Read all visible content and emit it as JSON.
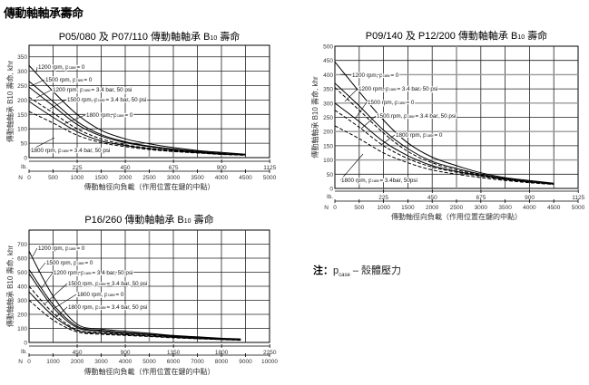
{
  "page_title": "傳動軸軸承壽命",
  "note": {
    "prefix": "注：",
    "p": "p",
    "sub": "case",
    "suffix": " – 殼體壓力"
  },
  "chart_data": [
    {
      "type": "line",
      "title": "P05/080 及 P07/110 傳動軸軸承 B10 壽命",
      "title_main": "P05/080 及 P07/110 傳動軸軸承 B",
      "title_sub": "10",
      "title_end": " 壽命",
      "ylabel": "傳動軸軸承 B10 壽命, khr",
      "xlabel": "傳動軸徑向負載（作用位置在鍵的中點）",
      "ylim": [
        0,
        390
      ],
      "yticks": [
        "0",
        "50",
        "100",
        "150",
        "200",
        "250",
        "300",
        "350"
      ],
      "xlim_N": [
        0,
        5000
      ],
      "xticks_N": [
        "0",
        "500",
        "1000",
        "1500",
        "2000",
        "2500",
        "3000",
        "3500",
        "4000",
        "4500",
        "5000"
      ],
      "xticks_lb": [
        "225",
        "450",
        "675",
        "900",
        "1125"
      ],
      "lb_label": "lb.",
      "n_label": "N",
      "grid": true,
      "series": [
        {
          "name": "1200 rpm, p",
          "sub": "case",
          "tail": "= 0",
          "dashed": false,
          "x": [
            0,
            500,
            1000,
            1500,
            2000,
            2500,
            3000,
            3500,
            4000,
            4500
          ],
          "y": [
            320,
            230,
            150,
            95,
            65,
            48,
            35,
            25,
            18,
            12
          ]
        },
        {
          "name": "1500 rpm, p",
          "sub": "case",
          "tail": "= 0",
          "dashed": false,
          "x": [
            0,
            500,
            1000,
            1500,
            2000,
            2500,
            3000,
            3500,
            4000,
            4500
          ],
          "y": [
            265,
            195,
            125,
            80,
            55,
            40,
            30,
            22,
            15,
            10
          ]
        },
        {
          "name": "1200 rpm, p",
          "sub": "case",
          "tail": "= 3.4 bar, 50 psi",
          "dashed": false,
          "x": [
            0,
            500,
            1000,
            1500,
            2000,
            2500,
            3000,
            3500,
            4000,
            4500
          ],
          "y": [
            245,
            180,
            115,
            75,
            52,
            38,
            28,
            20,
            14,
            10
          ]
        },
        {
          "name": "1500 rpm, p",
          "sub": "case",
          "tail": "= 3.4 bar, 50 psi",
          "dashed": true,
          "x": [
            0,
            500,
            1000,
            1500,
            2000,
            2500,
            3000,
            3500,
            4000,
            4500
          ],
          "y": [
            210,
            155,
            100,
            65,
            45,
            33,
            25,
            18,
            13,
            9
          ]
        },
        {
          "name": "1800 rpm, p",
          "sub": "case",
          "tail": "= 0",
          "dashed": false,
          "x": [
            0,
            500,
            1000,
            1500,
            2000,
            2500,
            3000,
            3500,
            4000,
            4500
          ],
          "y": [
            195,
            140,
            90,
            58,
            42,
            31,
            23,
            17,
            12,
            9
          ]
        },
        {
          "name": "1800 rpm, p",
          "sub": "case",
          "tail": "= 3.4 bar, 50 psi",
          "dashed": true,
          "x": [
            0,
            500,
            1000,
            1500,
            2000,
            2500,
            3000,
            3500,
            4000,
            4500
          ],
          "y": [
            160,
            120,
            78,
            52,
            38,
            28,
            21,
            16,
            11,
            8
          ]
        }
      ]
    },
    {
      "type": "line",
      "title": "P09/140 及 P12/200 傳動軸軸承 B10 壽命",
      "title_main": "P09/140 及 P12/200 傳動軸軸承 B",
      "title_sub": "10",
      "title_end": " 壽命",
      "ylabel": "傳動軸軸承 B10 壽命, khr",
      "xlabel": "傳動軸徑向負載（作用位置在鍵的中點）",
      "ylim": [
        0,
        500
      ],
      "yticks": [
        "0",
        "50",
        "100",
        "150",
        "200",
        "250",
        "300",
        "350",
        "400",
        "450",
        "500"
      ],
      "xlim_N": [
        0,
        5000
      ],
      "xticks_N": [
        "0",
        "500",
        "1000",
        "1500",
        "2000",
        "2500",
        "3000",
        "3500",
        "4000",
        "4500",
        "5000"
      ],
      "xticks_lb": [
        "225",
        "450",
        "675",
        "900",
        "1125"
      ],
      "lb_label": "lb.",
      "n_label": "N",
      "grid": true,
      "series": [
        {
          "name": "1200 rpm, p",
          "sub": "case",
          "tail": "= 0",
          "dashed": false,
          "x": [
            0,
            500,
            1000,
            1500,
            2000,
            2500,
            3000,
            3500,
            4000,
            4500
          ],
          "y": [
            445,
            340,
            240,
            160,
            110,
            80,
            55,
            38,
            28,
            18
          ]
        },
        {
          "name": "1200 rpm, p",
          "sub": "case",
          "tail": "= 3.4 bar, 50 psi",
          "dashed": false,
          "x": [
            0,
            500,
            1000,
            1500,
            2000,
            2500,
            3000,
            3500,
            4000,
            4500
          ],
          "y": [
            370,
            290,
            205,
            140,
            95,
            70,
            50,
            35,
            25,
            17
          ]
        },
        {
          "name": "1500 rpm, p",
          "sub": "case",
          "tail": "= 0",
          "dashed": true,
          "x": [
            0,
            500,
            1000,
            1500,
            2000,
            2500,
            3000,
            3500,
            4000,
            4500
          ],
          "y": [
            355,
            275,
            195,
            130,
            90,
            65,
            48,
            34,
            24,
            16
          ]
        },
        {
          "name": "1500 rpm, p",
          "sub": "case",
          "tail": "= 3.4 bar, 50 psi",
          "dashed": false,
          "x": [
            0,
            500,
            1000,
            1500,
            2000,
            2500,
            3000,
            3500,
            4000,
            4500
          ],
          "y": [
            300,
            235,
            165,
            115,
            80,
            60,
            45,
            32,
            23,
            15
          ]
        },
        {
          "name": "1800 rpm, p",
          "sub": "case",
          "tail": "= 0",
          "dashed": true,
          "x": [
            0,
            500,
            1000,
            1500,
            2000,
            2500,
            3000,
            3500,
            4000,
            4500
          ],
          "y": [
            275,
            215,
            150,
            105,
            75,
            57,
            43,
            31,
            22,
            15
          ]
        },
        {
          "name": "1800 rpm, p",
          "sub": "case",
          "tail": "= 3.4bar, 50psi",
          "dashed": true,
          "x": [
            0,
            500,
            1000,
            1500,
            2000,
            2500,
            3000,
            3500,
            4000,
            4500
          ],
          "y": [
            220,
            175,
            125,
            90,
            65,
            50,
            38,
            28,
            20,
            14
          ]
        }
      ]
    },
    {
      "type": "line",
      "title": "P16/260 傳動軸軸承 B10 壽命",
      "title_main": "P16/260 傳動軸軸承 B",
      "title_sub": "10",
      "title_end": " 壽命",
      "ylabel": "傳動軸軸承 B10 壽命, khr",
      "xlabel": "傳動軸徑向負載（作用位置在鍵的中點）",
      "ylim": [
        0,
        800
      ],
      "yticks": [
        "0",
        "100",
        "200",
        "300",
        "400",
        "500",
        "600",
        "700"
      ],
      "xlim_N": [
        0,
        10000
      ],
      "xticks_N": [
        "0",
        "1000",
        "2000",
        "3000",
        "4000",
        "5000",
        "6000",
        "7000",
        "8000",
        "9000",
        "10000"
      ],
      "xticks_lb": [
        "450",
        "900",
        "1350",
        "1800",
        "2250"
      ],
      "lb_label": "lb.",
      "n_label": "N",
      "grid": true,
      "series": [
        {
          "name": "1200 rpm, p",
          "sub": "case",
          "tail": "= 0",
          "dashed": false,
          "x": [
            0,
            1000,
            2000,
            3000,
            4000,
            5000,
            6000,
            7000,
            8000,
            8800
          ],
          "y": [
            650,
            330,
            130,
            95,
            80,
            65,
            50,
            40,
            30,
            25
          ]
        },
        {
          "name": "1500 rpm, p",
          "sub": "case",
          "tail": "= 0",
          "dashed": false,
          "x": [
            0,
            1000,
            2000,
            3000,
            4000,
            5000,
            6000,
            7000,
            8000,
            8800
          ],
          "y": [
            520,
            270,
            115,
            85,
            70,
            58,
            45,
            35,
            27,
            22
          ]
        },
        {
          "name": "1200 rpm, p",
          "sub": "case",
          "tail": "= 3.4 bar, 50 psi",
          "dashed": false,
          "x": [
            0,
            1000,
            2000,
            3000,
            4000,
            5000,
            6000,
            7000,
            8000,
            8800
          ],
          "y": [
            490,
            250,
            105,
            80,
            65,
            55,
            42,
            33,
            25,
            20
          ]
        },
        {
          "name": "1500 rpm, p",
          "sub": "case",
          "tail": "= 3.4 bar, 50 psi",
          "dashed": true,
          "x": [
            0,
            1000,
            2000,
            3000,
            4000,
            5000,
            6000,
            7000,
            8000,
            8800
          ],
          "y": [
            400,
            210,
            90,
            70,
            58,
            48,
            38,
            30,
            22,
            18
          ]
        },
        {
          "name": "1800 rpm, p",
          "sub": "case",
          "tail": "= 0",
          "dashed": false,
          "x": [
            0,
            1000,
            2000,
            3000,
            4000,
            5000,
            6000,
            7000,
            8000,
            8800
          ],
          "y": [
            360,
            190,
            85,
            65,
            55,
            45,
            36,
            28,
            21,
            17
          ]
        },
        {
          "name": "1800 rpm, p",
          "sub": "case",
          "tail": "= 3.4 bar, 50 psi",
          "dashed": true,
          "x": [
            0,
            1000,
            2000,
            3000,
            4000,
            5000,
            6000,
            7000,
            8000,
            8800
          ],
          "y": [
            300,
            160,
            75,
            58,
            50,
            42,
            33,
            26,
            20,
            15
          ]
        }
      ]
    }
  ]
}
